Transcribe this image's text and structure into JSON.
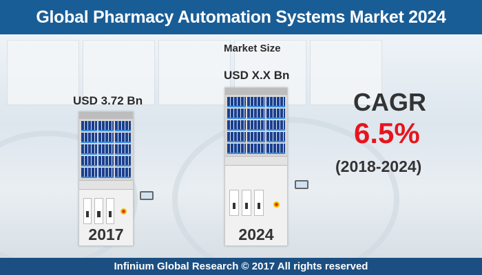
{
  "header": {
    "title": "Global Pharmacy Automation Systems Market 2024"
  },
  "market_size_label": "Market Size",
  "bars": [
    {
      "year": "2017",
      "value_label": "USD 3.72 Bn"
    },
    {
      "year": "2024",
      "value_label": "USD X.X Bn"
    }
  ],
  "cagr": {
    "label": "CAGR",
    "value": "6.5%",
    "period": "(2018-2024)",
    "value_color": "#e8141c"
  },
  "footer": {
    "text": "Infinium Global Research © 2017 All rights reserved"
  },
  "colors": {
    "header": "#195d96",
    "footer": "#1b4f82"
  }
}
